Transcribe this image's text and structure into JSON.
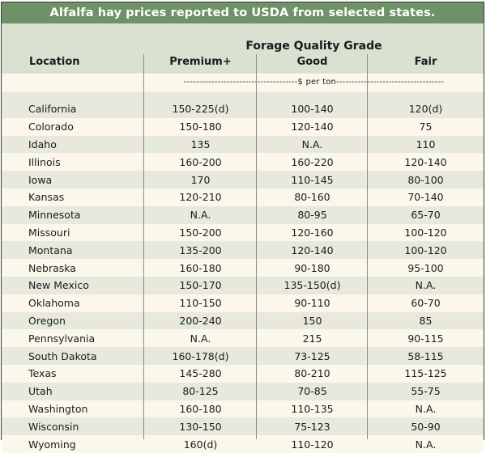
{
  "title": "Alfalfa hay prices reported to USDA from selected states.",
  "grade_header": "Forage Quality Grade",
  "columns": {
    "location": "Location",
    "premium": "Premium+",
    "good": "Good",
    "fair": "Fair"
  },
  "units": "-------------------------------------$ per ton-----------------------------------",
  "rows": [
    {
      "location": "California",
      "premium": "150-225(d)",
      "good": "100-140",
      "fair": "120(d)"
    },
    {
      "location": "Colorado",
      "premium": "150-180",
      "good": "120-140",
      "fair": "75"
    },
    {
      "location": "Idaho",
      "premium": "135",
      "good": "N.A.",
      "fair": "110"
    },
    {
      "location": "Illinois",
      "premium": "160-200",
      "good": "160-220",
      "fair": "120-140"
    },
    {
      "location": "Iowa",
      "premium": "170",
      "good": "110-145",
      "fair": "80-100"
    },
    {
      "location": "Kansas",
      "premium": "120-210",
      "good": "80-160",
      "fair": "70-140"
    },
    {
      "location": "Minnesota",
      "premium": "N.A.",
      "good": "80-95",
      "fair": "65-70"
    },
    {
      "location": "Missouri",
      "premium": "150-200",
      "good": "120-160",
      "fair": "100-120"
    },
    {
      "location": "Montana",
      "premium": "135-200",
      "good": "120-140",
      "fair": "100-120"
    },
    {
      "location": "Nebraska",
      "premium": "160-180",
      "good": "90-180",
      "fair": "95-100"
    },
    {
      "location": "New Mexico",
      "premium": "150-170",
      "good": "135-150(d)",
      "fair": "N.A."
    },
    {
      "location": "Oklahoma",
      "premium": "110-150",
      "good": "90-110",
      "fair": "60-70"
    },
    {
      "location": "Oregon",
      "premium": "200-240",
      "good": "150",
      "fair": "85"
    },
    {
      "location": "Pennsylvania",
      "premium": "N.A.",
      "good": "215",
      "fair": "90-115"
    },
    {
      "location": "South Dakota",
      "premium": "160-178(d)",
      "good": "73-125",
      "fair": "58-115"
    },
    {
      "location": "Texas",
      "premium": "145-280",
      "good": "80-210",
      "fair": "115-125"
    },
    {
      "location": "Utah",
      "premium": "80-125",
      "good": "70-85",
      "fair": "55-75"
    },
    {
      "location": "Washington",
      "premium": "160-180",
      "good": "110-135",
      "fair": "N.A."
    },
    {
      "location": "Wisconsin",
      "premium": "130-150",
      "good": "75-123",
      "fair": "50-90"
    },
    {
      "location": "Wyoming",
      "premium": "160(d)",
      "good": "110-120",
      "fair": "N.A."
    }
  ],
  "colors": {
    "title_bar": "#6f9167",
    "header_bg": "#d9e2d0",
    "row_shaded": "#e6e9dc",
    "row_light": "#fbf7eb"
  }
}
